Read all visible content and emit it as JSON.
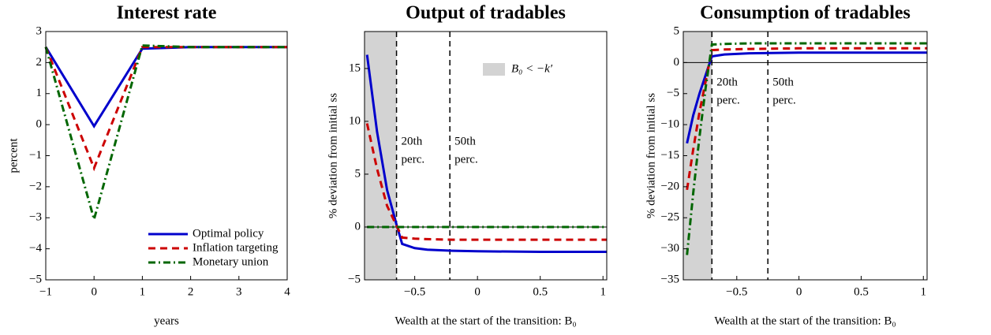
{
  "chart_data": [
    {
      "type": "line",
      "title": "Interest rate",
      "xlabel": "years",
      "ylabel": "percent",
      "x": [
        -1,
        0,
        1,
        2,
        3,
        4
      ],
      "series": [
        {
          "name": "Optimal policy",
          "color": "#0000cc",
          "style": "solid",
          "values": [
            2.5,
            -0.05,
            2.45,
            2.5,
            2.5,
            2.5
          ]
        },
        {
          "name": "Inflation targeting",
          "color": "#cc0000",
          "style": "dashed",
          "values": [
            2.5,
            -1.4,
            2.5,
            2.5,
            2.5,
            2.5
          ]
        },
        {
          "name": "Monetary union",
          "color": "#006600",
          "style": "dashdot",
          "values": [
            2.5,
            -3.05,
            2.55,
            2.5,
            2.5,
            2.5
          ]
        }
      ],
      "xlim": [
        -1,
        4
      ],
      "xticks": [
        {
          "value": -1,
          "label": "−1"
        },
        0,
        1,
        2,
        3,
        4
      ],
      "ylim": [
        -5,
        3
      ],
      "yticks": [
        {
          "value": -5,
          "label": "−5"
        },
        {
          "value": -4,
          "label": "−4"
        },
        {
          "value": -3,
          "label": "−3"
        },
        {
          "value": -2,
          "label": "−2"
        },
        {
          "value": -1,
          "label": "−1"
        },
        0,
        1,
        2,
        3
      ],
      "legend": "lower center"
    },
    {
      "type": "line",
      "title": "Output of tradables",
      "xlabel": "Wealth at the start of the transition: B₀",
      "ylabel": "% deviation from initial ss",
      "x": [
        -0.88,
        -0.8,
        -0.72,
        -0.64,
        -0.6,
        -0.5,
        -0.4,
        -0.2,
        0,
        0.5,
        1.03
      ],
      "series": [
        {
          "color": "#0000cc",
          "style": "solid",
          "values": [
            16.3,
            9,
            3.5,
            0,
            -1.6,
            -2.0,
            -2.15,
            -2.25,
            -2.3,
            -2.35,
            -2.35
          ]
        },
        {
          "color": "#cc0000",
          "style": "dashed",
          "values": [
            9.8,
            5.5,
            2,
            0,
            -1.0,
            -1.1,
            -1.15,
            -1.2,
            -1.2,
            -1.2,
            -1.2
          ]
        },
        {
          "color": "#006600",
          "style": "dashdot",
          "values": [
            0,
            0,
            0,
            0,
            0,
            0,
            0,
            0,
            0,
            0,
            0
          ]
        }
      ],
      "shade": {
        "range": [
          -0.9,
          -0.645
        ],
        "label": "B₀ < −k′",
        "color": "#d3d3d3"
      },
      "vlines": [
        {
          "x": -0.645,
          "label": [
            "20th",
            "perc."
          ]
        },
        {
          "x": -0.22,
          "label": [
            "50th",
            "perc."
          ]
        }
      ],
      "zero_line": true,
      "xlim": [
        -0.9,
        1.03
      ],
      "xticks": [
        {
          "value": -0.5,
          "label": "−0.5"
        },
        0,
        0.5,
        1
      ],
      "ylim": [
        -5,
        18.5
      ],
      "yticks": [
        {
          "value": -5,
          "label": "−5"
        },
        0,
        5,
        10,
        15
      ]
    },
    {
      "type": "line",
      "title": "Consumption of tradables",
      "xlabel": "Wealth at the start of the transition: B₀",
      "ylabel": "% deviation from initial ss",
      "x": [
        -0.9,
        -0.85,
        -0.8,
        -0.75,
        -0.7,
        -0.6,
        -0.4,
        0,
        0.5,
        1.03
      ],
      "series": [
        {
          "color": "#0000cc",
          "style": "solid",
          "values": [
            -13,
            -8.5,
            -5,
            -2,
            1.0,
            1.3,
            1.5,
            1.6,
            1.6,
            1.6
          ]
        },
        {
          "color": "#cc0000",
          "style": "dashed",
          "values": [
            -20.5,
            -14,
            -8,
            -3,
            2.0,
            2.1,
            2.2,
            2.3,
            2.3,
            2.3
          ]
        },
        {
          "color": "#006600",
          "style": "dashdot",
          "values": [
            -31,
            -21,
            -12,
            -4,
            2.9,
            3.0,
            3.1,
            3.1,
            3.1,
            3.1
          ]
        }
      ],
      "shade": {
        "range": [
          -0.93,
          -0.7
        ],
        "color": "#d3d3d3"
      },
      "vlines": [
        {
          "x": -0.7,
          "label": [
            "20th",
            "perc."
          ]
        },
        {
          "x": -0.25,
          "label": [
            "50th",
            "perc."
          ]
        }
      ],
      "zero_line": true,
      "xlim": [
        -0.93,
        1.03
      ],
      "xticks": [
        {
          "value": -0.5,
          "label": "−0.5"
        },
        0,
        0.5,
        1
      ],
      "ylim": [
        -35,
        5
      ],
      "yticks": [
        {
          "value": -35,
          "label": "−35"
        },
        {
          "value": -30,
          "label": "−30"
        },
        {
          "value": -25,
          "label": "−25"
        },
        {
          "value": -20,
          "label": "−20"
        },
        {
          "value": -15,
          "label": "−15"
        },
        {
          "value": -10,
          "label": "−10"
        },
        {
          "value": -5,
          "label": "−5"
        },
        0,
        5
      ]
    }
  ]
}
